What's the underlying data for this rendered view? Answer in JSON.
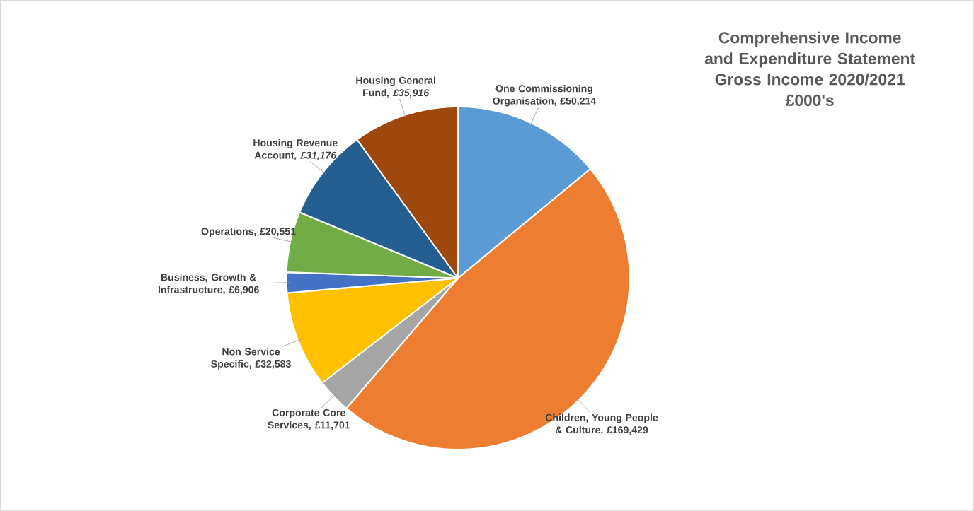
{
  "chart_data": {
    "type": "pie",
    "title": "Comprehensive Income and Expenditure Statement Gross Income 2020/2021",
    "subtitle": "£000's",
    "categories": [
      "One Commissioning Organisation",
      "Children, Young People & Culture",
      "Corporate Core Services",
      "Non Service Specific",
      "Business, Growth & Infrastructure",
      "Operations",
      "Housing Revenue Account",
      "Housing General Fund"
    ],
    "values": [
      50214,
      169429,
      11701,
      32583,
      6906,
      20551,
      31176,
      35916
    ],
    "value_labels": [
      ", £50,214",
      ", £169,429",
      ", £11,701",
      ", £32,583",
      ", £6,906",
      ", £20,551",
      "*, £31,176*",
      "*, £35,916*"
    ],
    "colors": [
      "#5b9bd5",
      "#ed7d31",
      "#a5a5a5",
      "#ffc000",
      "#4472c4",
      "#70ad47",
      "#255e91",
      "#9e480e"
    ]
  }
}
